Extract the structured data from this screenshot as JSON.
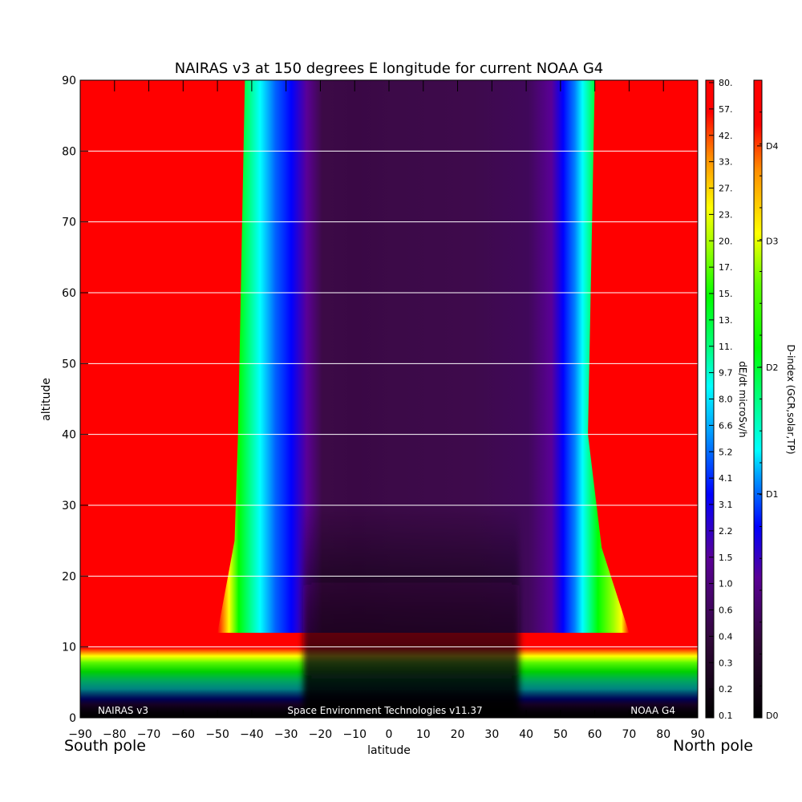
{
  "chart_data": {
    "type": "heatmap",
    "title": "NAIRAS v3 at 150 degrees E longitude for current NOAA G4",
    "xlabel": "latitude",
    "ylabel": "altitude",
    "xlim": [
      -90,
      90
    ],
    "ylim": [
      0,
      90
    ],
    "x_ticks": [
      -90,
      -80,
      -70,
      -60,
      -50,
      -40,
      -30,
      -20,
      -10,
      0,
      10,
      20,
      30,
      40,
      50,
      60,
      70,
      80,
      90
    ],
    "x_tick_labels": [
      "−90",
      "−80",
      "−70",
      "−60",
      "−50",
      "−40",
      "−30",
      "−20",
      "−10",
      "0",
      "10",
      "20",
      "30",
      "40",
      "50",
      "60",
      "70",
      "80",
      "90"
    ],
    "y_ticks": [
      0,
      10,
      20,
      30,
      40,
      50,
      60,
      70,
      80,
      90
    ],
    "y_tick_labels": [
      "0",
      "10",
      "20",
      "30",
      "40",
      "50",
      "60",
      "70",
      "80",
      "90"
    ],
    "grid": "horizontal",
    "pole_labels": {
      "left": "South pole",
      "right": "North pole"
    },
    "footer": {
      "left": "NAIRAS v3",
      "center": "Space Environment Technologies v11.37",
      "right": "NOAA G4"
    },
    "colorbar_dose": {
      "label": "dE/dt microSv/h",
      "ticks": [
        "80.",
        "57.",
        "42.",
        "33.",
        "27.",
        "23.",
        "20.",
        "17.",
        "15.",
        "13.",
        "11.",
        "9.7",
        "8.0",
        "6.6",
        "5.2",
        "4.1",
        "3.1",
        "2.2",
        "1.5",
        "1.0",
        "0.6",
        "0.4",
        "0.3",
        "0.2",
        "0.1"
      ]
    },
    "colorbar_dindex": {
      "label": "D-index (GCR,solar,TP)",
      "ticks": [
        "D4",
        "D3",
        "D2",
        "D1",
        "D0"
      ],
      "tick_levels": [
        0.9,
        0.75,
        0.55,
        0.35,
        0
      ]
    },
    "colors": {
      "red": "#ff0000",
      "orange": "#ff8c00",
      "yellow": "#ffff00",
      "green": "#00ff00",
      "cyan": "#00ffff",
      "blue": "#0000ff",
      "purple": "#5a0096",
      "dark_purple": "#3c0a46",
      "black": "#000000"
    }
  }
}
